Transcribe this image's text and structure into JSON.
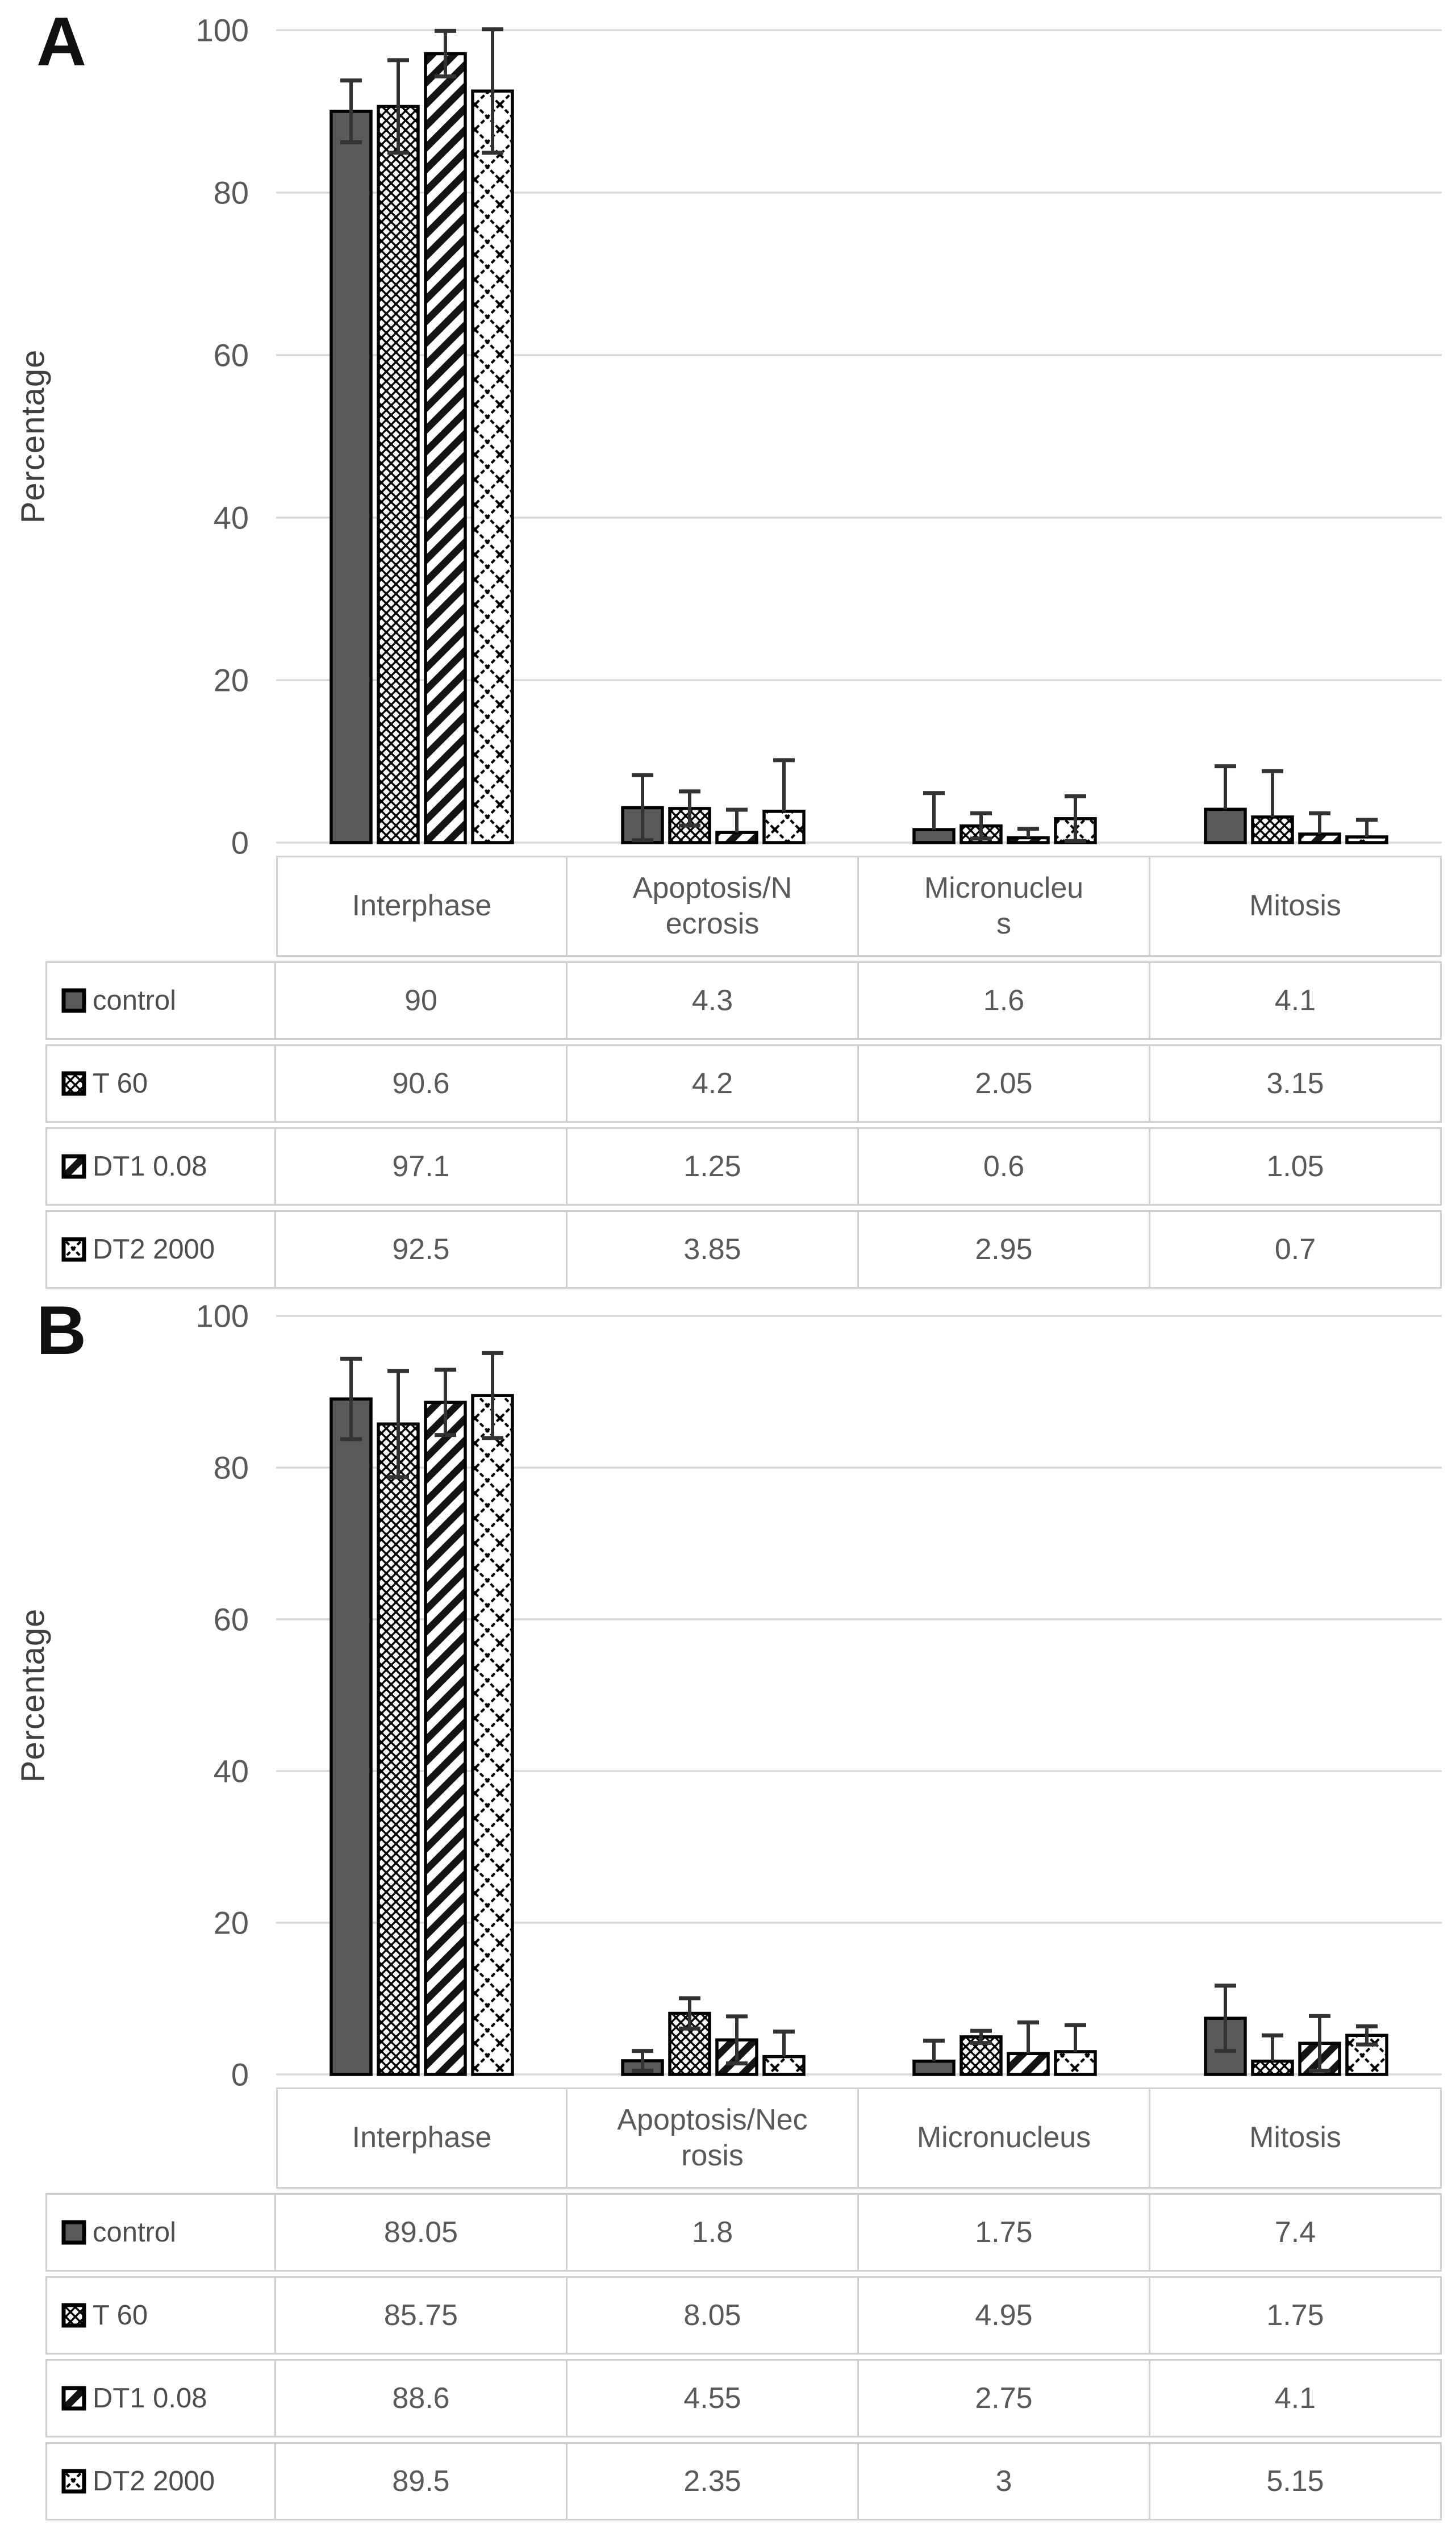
{
  "page": {
    "background": "#ffffff"
  },
  "colors": {
    "text": "#595959",
    "grid": "#d9d9d9",
    "bar_fill_control": "#595959",
    "bar_outline": "#000000",
    "error_bar": "#333333",
    "table_border": "#cfcfcf",
    "panel_letter": "#111111"
  },
  "chart_data": [
    {
      "type": "bar",
      "panel_label": "A",
      "title": "",
      "xlabel": "",
      "ylabel": "Percentage",
      "ylim": [
        0,
        100
      ],
      "yticks": [
        0,
        20,
        40,
        60,
        80,
        100
      ],
      "grid": true,
      "legend_position": "table-rows-left",
      "categories": [
        "Interphase",
        "Apoptosis/Necrosis",
        "Micronucleus",
        "Mitosis"
      ],
      "categories_display": [
        "Interphase",
        "Apoptosis/N\necrosis",
        "Micronucleu\ns",
        "Mitosis"
      ],
      "series": [
        {
          "name": "control",
          "pattern": "solid-dark-gray",
          "values": [
            90,
            4.3,
            1.6,
            4.1
          ],
          "errors_plus": [
            3.8,
            4.0,
            4.5,
            5.3
          ],
          "display": [
            "90",
            "4.3",
            "1.6",
            "4.1"
          ]
        },
        {
          "name": "T 60",
          "pattern": "small-diamond-lattice",
          "values": [
            90.6,
            4.2,
            2.05,
            3.15
          ],
          "errors_plus": [
            5.7,
            2.1,
            1.55,
            5.65
          ],
          "display": [
            "90.6",
            "4.2",
            "2.05",
            "3.15"
          ]
        },
        {
          "name": "DT1 0.08",
          "pattern": "diagonal-stripes",
          "values": [
            97.1,
            1.25,
            0.6,
            1.05
          ],
          "errors_plus": [
            2.8,
            2.8,
            1.1,
            2.55
          ],
          "display": [
            "97.1",
            "1.25",
            "0.6",
            "1.05"
          ]
        },
        {
          "name": "DT2 2000",
          "pattern": "large-diamond-lattice",
          "values": [
            92.5,
            3.85,
            2.95,
            0.7
          ],
          "errors_plus": [
            7.6,
            6.3,
            2.75,
            2.1
          ],
          "display": [
            "92.5",
            "3.85",
            "2.95",
            "0.7"
          ]
        }
      ]
    },
    {
      "type": "bar",
      "panel_label": "B",
      "title": "",
      "xlabel": "",
      "ylabel": "Percentage",
      "ylim": [
        0,
        100
      ],
      "yticks": [
        0,
        20,
        40,
        60,
        80,
        100
      ],
      "grid": true,
      "legend_position": "table-rows-left",
      "categories": [
        "Interphase",
        "Apoptosis/Necrosis",
        "Micronucleus",
        "Mitosis"
      ],
      "categories_display": [
        "Interphase",
        "Apoptosis/Nec\nrosis",
        "Micronucleus",
        "Mitosis"
      ],
      "series": [
        {
          "name": "control",
          "pattern": "solid-dark-gray",
          "values": [
            89.05,
            1.8,
            1.75,
            7.4
          ],
          "errors_plus": [
            5.3,
            1.3,
            2.7,
            4.3
          ],
          "display": [
            "89.05",
            "1.8",
            "1.75",
            "7.4"
          ]
        },
        {
          "name": "T 60",
          "pattern": "small-diamond-lattice",
          "values": [
            85.75,
            8.05,
            4.95,
            1.75
          ],
          "errors_plus": [
            7.0,
            2.0,
            0.8,
            3.4
          ],
          "display": [
            "85.75",
            "8.05",
            "4.95",
            "1.75"
          ]
        },
        {
          "name": "DT1 0.08",
          "pattern": "diagonal-stripes",
          "values": [
            88.6,
            4.55,
            2.75,
            4.1
          ],
          "errors_plus": [
            4.3,
            3.1,
            4.1,
            3.6
          ],
          "display": [
            "88.6",
            "4.55",
            "2.75",
            "4.1"
          ]
        },
        {
          "name": "DT2 2000",
          "pattern": "large-diamond-lattice",
          "values": [
            89.5,
            2.35,
            3,
            5.15
          ],
          "errors_plus": [
            5.6,
            3.3,
            3.5,
            1.2
          ],
          "display": [
            "89.5",
            "2.35",
            "3",
            "5.15"
          ]
        }
      ]
    }
  ]
}
